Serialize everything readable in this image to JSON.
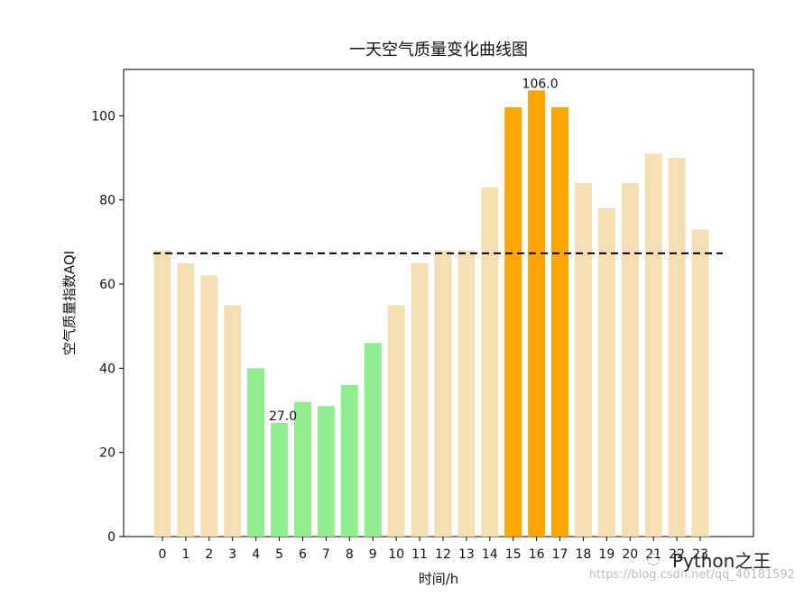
{
  "chart_data": {
    "type": "bar",
    "title": "一天空气质量变化曲线图",
    "xlabel": "时间/h",
    "ylabel": "空气质量指数AQI",
    "categories": [
      "0",
      "1",
      "2",
      "3",
      "4",
      "5",
      "6",
      "7",
      "8",
      "9",
      "10",
      "11",
      "12",
      "13",
      "14",
      "15",
      "16",
      "17",
      "18",
      "19",
      "20",
      "21",
      "22",
      "23"
    ],
    "values": [
      68,
      65,
      62,
      55,
      40,
      27,
      32,
      31,
      36,
      46,
      55,
      65,
      68,
      68,
      83,
      102,
      106,
      102,
      84,
      78,
      84,
      91,
      90,
      73
    ],
    "bar_color_groups": {
      "default": "#F5DEB3",
      "low": "#90EE90",
      "high": "#FFA500"
    },
    "bar_groups": [
      "default",
      "default",
      "default",
      "default",
      "low",
      "low",
      "low",
      "low",
      "low",
      "low",
      "default",
      "default",
      "default",
      "default",
      "default",
      "high",
      "high",
      "high",
      "default",
      "default",
      "default",
      "default",
      "default",
      "default"
    ],
    "reference_line": {
      "value": 67.3,
      "style": "dashed",
      "color": "#000000"
    },
    "annotations": [
      {
        "index": 5,
        "text": "27.0"
      },
      {
        "index": 16,
        "text": "106.0"
      }
    ],
    "ylim": [
      0,
      111
    ],
    "yticks": [
      0,
      20,
      40,
      60,
      80,
      100
    ],
    "grid": false,
    "legend": "none"
  },
  "watermark": {
    "brand": "Python之王",
    "url": "https://blog.csdn.net/qq_40181592",
    "logo_icon": "wechat-icon"
  }
}
